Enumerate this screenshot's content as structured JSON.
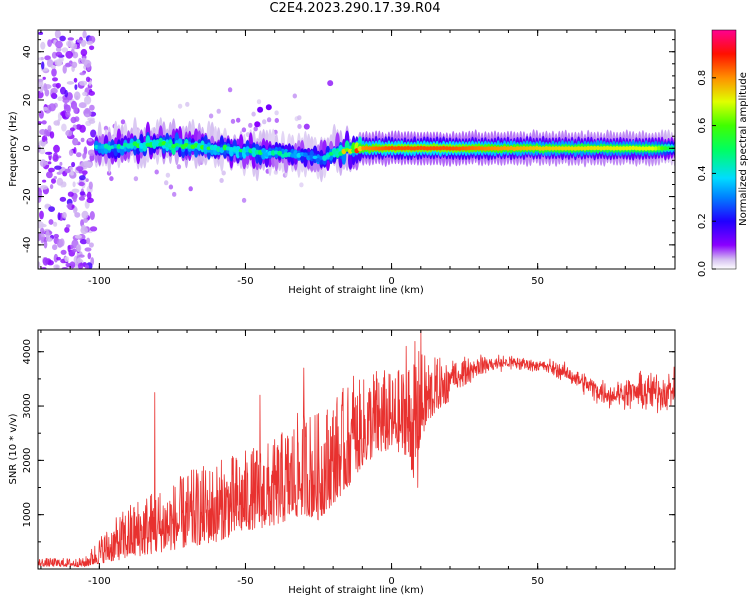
{
  "title": "C2E4.2023.290.17.39.R04",
  "chart_data": [
    {
      "type": "heatmap",
      "title": "C2E4.2023.290.17.39.R04",
      "xlabel": "Height of straight line (km)",
      "ylabel": "Frequency (Hz)",
      "xlim": [
        -121,
        97
      ],
      "ylim": [
        -50,
        49
      ],
      "x_ticks": [
        -100,
        -50,
        0,
        50
      ],
      "y_ticks": [
        -40,
        -20,
        0,
        20,
        40
      ],
      "colorbar": {
        "label": "Normalized spectral amplitude",
        "range": [
          0.0,
          1.0
        ],
        "ticks": [
          0.0,
          0.2,
          0.4,
          0.6,
          0.8
        ],
        "colormap": [
          "#ffffff",
          "#c9a8ee",
          "#8a00ff",
          "#0000ff",
          "#00c8ff",
          "#00ff80",
          "#7cff00",
          "#ffff00",
          "#ff8000",
          "#ff0000",
          "#ff0090"
        ]
      },
      "ridge": {
        "description": "Frequency ridge near 0 Hz",
        "x": [
          -100,
          -90,
          -80,
          -70,
          -60,
          -50,
          -40,
          -30,
          -25,
          -20,
          -15,
          -10,
          0,
          10,
          20,
          50,
          90,
          97
        ],
        "center_hz": [
          0,
          1,
          2,
          1,
          0,
          -1,
          -2,
          -3,
          -4,
          -2,
          -1,
          0,
          0,
          0,
          0,
          0,
          0,
          0
        ],
        "amplitude": [
          0.35,
          0.45,
          0.5,
          0.5,
          0.45,
          0.45,
          0.4,
          0.35,
          0.35,
          0.5,
          0.65,
          0.8,
          0.85,
          0.85,
          0.85,
          0.75,
          0.7,
          0.45
        ]
      },
      "noise_region": {
        "x": [
          -121,
          -102
        ],
        "amplitude": 0.15
      }
    },
    {
      "type": "line",
      "xlabel": "Height of straight line (km)",
      "ylabel": "SNR (10 * v/v)",
      "xlim": [
        -121,
        97
      ],
      "ylim": [
        0,
        4400
      ],
      "x_ticks": [
        -100,
        -50,
        0,
        50
      ],
      "y_ticks": [
        1000,
        2000,
        3000,
        4000
      ],
      "color": "#e8312f",
      "envelope": {
        "x": [
          -121,
          -105,
          -100,
          -95,
          -90,
          -85,
          -80,
          -75,
          -70,
          -65,
          -60,
          -55,
          -50,
          -45,
          -40,
          -35,
          -30,
          -25,
          -20,
          -15,
          -10,
          -5,
          0,
          5,
          8,
          10,
          15,
          20,
          25,
          30,
          40,
          50,
          55,
          60,
          65,
          70,
          75,
          80,
          85,
          90,
          97
        ],
        "low": [
          50,
          40,
          100,
          150,
          200,
          250,
          300,
          350,
          400,
          450,
          500,
          600,
          700,
          750,
          800,
          900,
          1000,
          900,
          1200,
          1500,
          1900,
          2100,
          2200,
          2100,
          1600,
          2400,
          2900,
          3100,
          3300,
          3500,
          3600,
          3600,
          3500,
          3400,
          3200,
          3000,
          2900,
          2900,
          2800,
          2700,
          2900
        ],
        "high": [
          200,
          200,
          600,
          900,
          1200,
          1400,
          1500,
          1600,
          1800,
          1900,
          2000,
          2100,
          2200,
          2300,
          2400,
          2700,
          3000,
          2900,
          3200,
          3400,
          3500,
          3800,
          3600,
          3800,
          4200,
          4000,
          3900,
          3900,
          3950,
          4000,
          4000,
          3900,
          3900,
          3800,
          3700,
          3600,
          3500,
          3600,
          3700,
          3800,
          3700
        ]
      },
      "spikes": [
        {
          "x": -81,
          "y": 3250
        },
        {
          "x": -45,
          "y": 3200
        },
        {
          "x": -30,
          "y": 3700
        },
        {
          "x": -13,
          "y": 3550
        },
        {
          "x": -5,
          "y": 3500
        },
        {
          "x": 5,
          "y": 4100
        },
        {
          "x": 10,
          "y": 4400
        },
        {
          "x": 9,
          "y": 1500
        }
      ]
    }
  ]
}
